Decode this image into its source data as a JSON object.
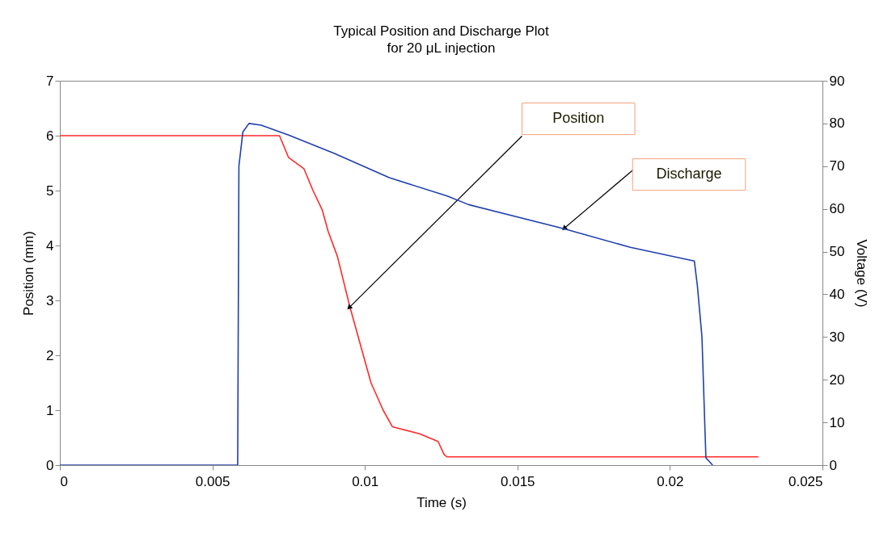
{
  "chart_data": {
    "type": "line",
    "title": "Typical Position and Discharge Plot",
    "subtitle": "for 20 μL injection",
    "xlabel": "Time (s)",
    "ylabel": "Position (mm)",
    "y2label": "Voltage (V)",
    "xlim": [
      0,
      0.025
    ],
    "xticks": [
      0,
      0.005,
      0.01,
      0.015,
      0.02,
      0.025
    ],
    "ylim": [
      0,
      7
    ],
    "yticks": [
      0,
      1,
      2,
      3,
      4,
      5,
      6,
      7
    ],
    "y2lim": [
      0,
      90
    ],
    "y2ticks": [
      0,
      10,
      20,
      30,
      40,
      50,
      60,
      70,
      80,
      90
    ],
    "grid": false,
    "series": [
      {
        "color": "#ff2a2a",
        "x": [
          0,
          0.0072,
          0.0075,
          0.008,
          0.0083,
          0.0086,
          0.0088,
          0.0091,
          0.0095,
          0.0099,
          0.0102,
          0.0106,
          0.0109,
          0.0118,
          0.0124,
          0.0126,
          0.0127,
          0.0229
        ],
        "values": [
          6,
          6,
          5.6,
          5.4,
          5.0,
          4.65,
          4.25,
          3.8,
          2.9,
          2.1,
          1.5,
          1.0,
          0.7,
          0.57,
          0.43,
          0.19,
          0.15,
          0.15
        ]
      },
      {
        "color": "#1f3fb0",
        "axis": "y2",
        "x": [
          0,
          0.00583,
          0.00587,
          0.006,
          0.0062,
          0.0066,
          0.0075,
          0.009,
          0.0108,
          0.0127,
          0.0134,
          0.0165,
          0.0187,
          0.0208,
          0.0209,
          0.02105,
          0.02115,
          0.02118,
          0.0214
        ],
        "values": [
          0,
          0,
          70,
          78,
          80,
          79.6,
          77.3,
          73,
          67.3,
          63,
          61,
          55.4,
          51,
          47.8,
          42,
          30,
          8,
          1.7,
          0
        ]
      }
    ],
    "annotations": [
      "Position",
      "Discharge"
    ]
  }
}
